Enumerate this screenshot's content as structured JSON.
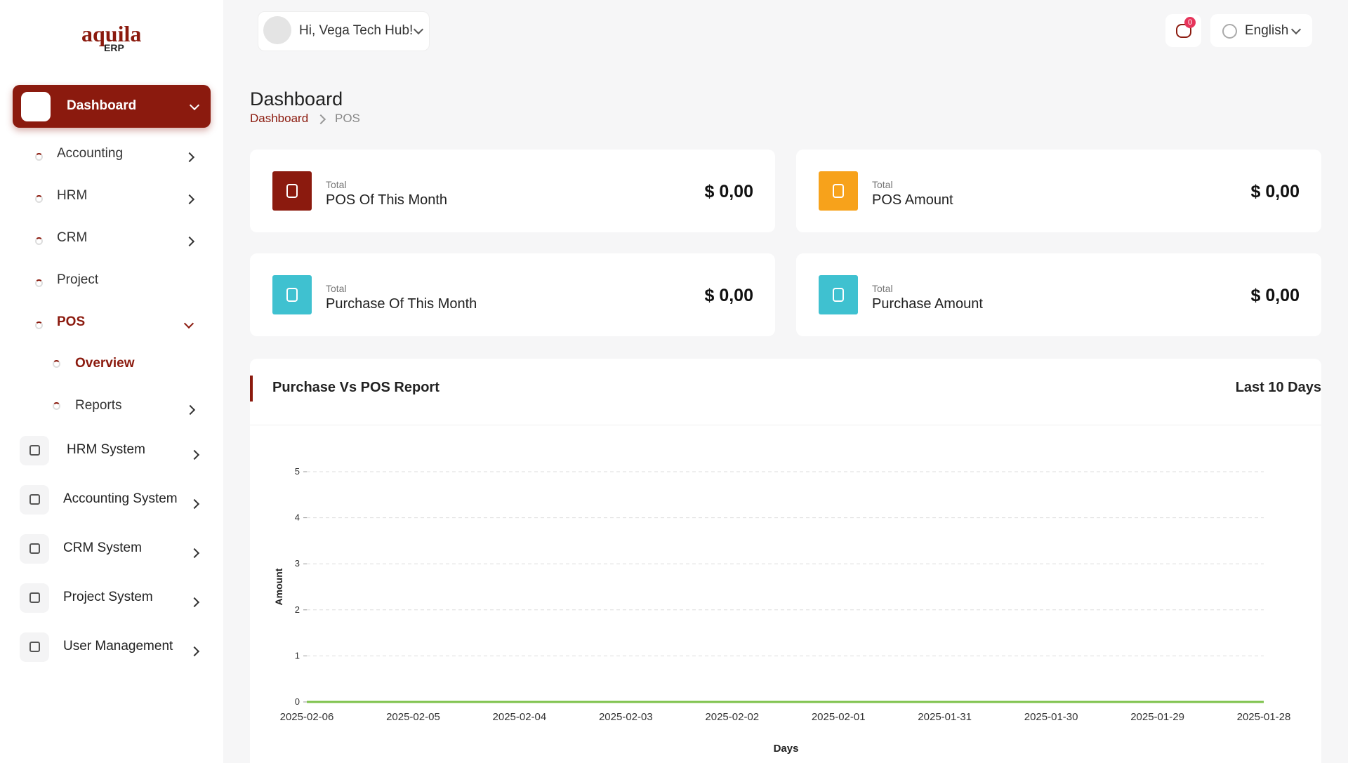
{
  "logo": {
    "name": "aquila",
    "sub": "ERP"
  },
  "header": {
    "greeting": "Hi, Vega Tech Hub!",
    "notifications": 0,
    "language": "English"
  },
  "sidebar": {
    "main": "Dashboard",
    "dashboard_items": [
      "Accounting",
      "HRM",
      "CRM",
      "Project",
      "POS"
    ],
    "pos_items": [
      "Overview",
      "Reports"
    ],
    "systems": [
      "HRM System",
      "Accounting System",
      "CRM System",
      "Project System",
      "User Management"
    ]
  },
  "page": {
    "title": "Dashboard",
    "breadcrumb": [
      "Dashboard",
      "POS"
    ]
  },
  "cards": [
    {
      "caption": "Total",
      "title": "POS Of This Month",
      "value": "$ 0,00",
      "color": "#8b1a0e"
    },
    {
      "caption": "Total",
      "title": "POS Amount",
      "value": "$ 0,00",
      "color": "#f7a21b"
    },
    {
      "caption": "Total",
      "title": "Purchase Of This Month",
      "value": "$ 0,00",
      "color": "#3fc1d0"
    },
    {
      "caption": "Total",
      "title": "Purchase Amount",
      "value": "$ 0,00",
      "color": "#3fc1d0"
    }
  ],
  "report_period": "Last 10 Days",
  "chart_data": {
    "type": "line",
    "title": "Purchase Vs POS Report",
    "x_label": "Days",
    "y_label": "Amount",
    "categories": [
      "2025-02-06",
      "2025-02-05",
      "2025-02-04",
      "2025-02-03",
      "2025-02-02",
      "2025-02-01",
      "2025-01-31",
      "2025-01-30",
      "2025-01-29",
      "2025-01-28"
    ],
    "series": [
      {
        "color": "#7cc24a",
        "values": [
          0,
          0,
          0,
          0,
          0,
          0,
          0,
          0,
          0,
          0
        ]
      }
    ],
    "ylim": [
      0,
      5
    ],
    "yticks": [
      0,
      1,
      2,
      3,
      4,
      5
    ],
    "grid": true
  }
}
